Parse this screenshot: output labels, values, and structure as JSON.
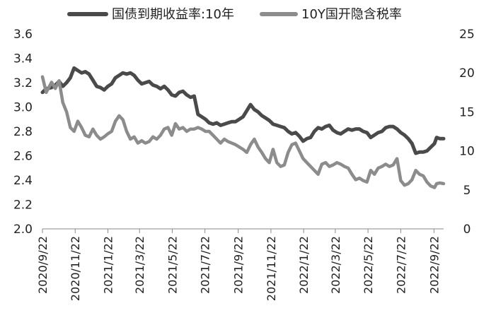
{
  "chart_data": {
    "type": "line",
    "title": "",
    "legend_position": "top",
    "grid": false,
    "x_tick_labels": [
      "2020/9/22",
      "2020/11/22",
      "2021/1/22",
      "2021/3/22",
      "2021/5/22",
      "2021/7/22",
      "2021/9/22",
      "2021/11/22",
      "2022/1/22",
      "2022/3/22",
      "2022/5/22",
      "2022/7/22",
      "2022/9/22"
    ],
    "x_range": [
      "2020-09-22",
      "2022-10-10"
    ],
    "y_left": {
      "ylim": [
        2.0,
        3.6
      ],
      "ticks": [
        "2.0",
        "2.2",
        "2.4",
        "2.6",
        "2.8",
        "3.0",
        "3.2",
        "3.4",
        "3.6"
      ]
    },
    "y_right": {
      "ylim": [
        0,
        25
      ],
      "ticks": [
        "0",
        "5",
        "10",
        "15",
        "20",
        "25"
      ]
    },
    "series": [
      {
        "name": "国债到期收益率:10年",
        "axis": "left",
        "color": "#4a4a4a",
        "points": [
          [
            "2020-09-22",
            3.12
          ],
          [
            "2020-09-29",
            3.15
          ],
          [
            "2020-10-09",
            3.16
          ],
          [
            "2020-10-16",
            3.18
          ],
          [
            "2020-10-23",
            3.21
          ],
          [
            "2020-10-30",
            3.17
          ],
          [
            "2020-11-06",
            3.2
          ],
          [
            "2020-11-13",
            3.24
          ],
          [
            "2020-11-20",
            3.32
          ],
          [
            "2020-11-27",
            3.3
          ],
          [
            "2020-12-04",
            3.28
          ],
          [
            "2020-12-11",
            3.29
          ],
          [
            "2020-12-18",
            3.27
          ],
          [
            "2020-12-25",
            3.22
          ],
          [
            "2021-01-01",
            3.17
          ],
          [
            "2021-01-08",
            3.16
          ],
          [
            "2021-01-15",
            3.14
          ],
          [
            "2021-01-22",
            3.17
          ],
          [
            "2021-01-29",
            3.19
          ],
          [
            "2021-02-05",
            3.24
          ],
          [
            "2021-02-12",
            3.26
          ],
          [
            "2021-02-19",
            3.28
          ],
          [
            "2021-02-26",
            3.27
          ],
          [
            "2021-03-05",
            3.28
          ],
          [
            "2021-03-12",
            3.26
          ],
          [
            "2021-03-19",
            3.22
          ],
          [
            "2021-03-26",
            3.19
          ],
          [
            "2021-04-02",
            3.2
          ],
          [
            "2021-04-09",
            3.21
          ],
          [
            "2021-04-16",
            3.18
          ],
          [
            "2021-04-23",
            3.17
          ],
          [
            "2021-04-30",
            3.15
          ],
          [
            "2021-05-07",
            3.17
          ],
          [
            "2021-05-14",
            3.14
          ],
          [
            "2021-05-21",
            3.1
          ],
          [
            "2021-05-28",
            3.09
          ],
          [
            "2021-06-04",
            3.12
          ],
          [
            "2021-06-11",
            3.13
          ],
          [
            "2021-06-18",
            3.1
          ],
          [
            "2021-06-25",
            3.08
          ],
          [
            "2021-07-02",
            3.09
          ],
          [
            "2021-07-09",
            2.94
          ],
          [
            "2021-07-16",
            2.92
          ],
          [
            "2021-07-23",
            2.9
          ],
          [
            "2021-07-30",
            2.87
          ],
          [
            "2021-08-06",
            2.86
          ],
          [
            "2021-08-13",
            2.87
          ],
          [
            "2021-08-20",
            2.85
          ],
          [
            "2021-08-27",
            2.86
          ],
          [
            "2021-09-03",
            2.87
          ],
          [
            "2021-09-10",
            2.88
          ],
          [
            "2021-09-17",
            2.88
          ],
          [
            "2021-09-24",
            2.9
          ],
          [
            "2021-10-01",
            2.92
          ],
          [
            "2021-10-08",
            2.97
          ],
          [
            "2021-10-15",
            3.02
          ],
          [
            "2021-10-22",
            2.98
          ],
          [
            "2021-10-29",
            2.96
          ],
          [
            "2021-11-05",
            2.93
          ],
          [
            "2021-11-12",
            2.91
          ],
          [
            "2021-11-19",
            2.89
          ],
          [
            "2021-11-26",
            2.86
          ],
          [
            "2021-12-03",
            2.85
          ],
          [
            "2021-12-10",
            2.84
          ],
          [
            "2021-12-17",
            2.83
          ],
          [
            "2021-12-24",
            2.8
          ],
          [
            "2021-12-31",
            2.78
          ],
          [
            "2022-01-07",
            2.79
          ],
          [
            "2022-01-14",
            2.76
          ],
          [
            "2022-01-21",
            2.72
          ],
          [
            "2022-01-28",
            2.74
          ],
          [
            "2022-02-04",
            2.75
          ],
          [
            "2022-02-11",
            2.8
          ],
          [
            "2022-02-18",
            2.83
          ],
          [
            "2022-02-25",
            2.82
          ],
          [
            "2022-03-04",
            2.84
          ],
          [
            "2022-03-11",
            2.85
          ],
          [
            "2022-03-18",
            2.81
          ],
          [
            "2022-03-25",
            2.79
          ],
          [
            "2022-04-01",
            2.78
          ],
          [
            "2022-04-08",
            2.8
          ],
          [
            "2022-04-15",
            2.82
          ],
          [
            "2022-04-22",
            2.81
          ],
          [
            "2022-04-29",
            2.82
          ],
          [
            "2022-05-06",
            2.82
          ],
          [
            "2022-05-13",
            2.8
          ],
          [
            "2022-05-20",
            2.79
          ],
          [
            "2022-05-27",
            2.75
          ],
          [
            "2022-06-03",
            2.77
          ],
          [
            "2022-06-10",
            2.79
          ],
          [
            "2022-06-17",
            2.8
          ],
          [
            "2022-06-24",
            2.83
          ],
          [
            "2022-07-01",
            2.84
          ],
          [
            "2022-07-08",
            2.84
          ],
          [
            "2022-07-15",
            2.82
          ],
          [
            "2022-07-22",
            2.79
          ],
          [
            "2022-07-29",
            2.77
          ],
          [
            "2022-08-05",
            2.74
          ],
          [
            "2022-08-12",
            2.7
          ],
          [
            "2022-08-19",
            2.62
          ],
          [
            "2022-08-26",
            2.63
          ],
          [
            "2022-09-02",
            2.63
          ],
          [
            "2022-09-09",
            2.64
          ],
          [
            "2022-09-16",
            2.67
          ],
          [
            "2022-09-23",
            2.7
          ],
          [
            "2022-09-27",
            2.75
          ],
          [
            "2022-10-03",
            2.74
          ],
          [
            "2022-10-10",
            2.74
          ]
        ]
      },
      {
        "name": "10Y国开隐含税率",
        "axis": "right",
        "color": "#8c8c8c",
        "points": [
          [
            "2020-09-22",
            19.5
          ],
          [
            "2020-09-29",
            17.5
          ],
          [
            "2020-10-09",
            18.8
          ],
          [
            "2020-10-16",
            18.0
          ],
          [
            "2020-10-23",
            19.0
          ],
          [
            "2020-10-30",
            16.2
          ],
          [
            "2020-11-06",
            15.0
          ],
          [
            "2020-11-13",
            13.0
          ],
          [
            "2020-11-20",
            12.5
          ],
          [
            "2020-11-27",
            13.8
          ],
          [
            "2020-12-04",
            13.0
          ],
          [
            "2020-12-11",
            12.0
          ],
          [
            "2020-12-18",
            11.8
          ],
          [
            "2020-12-25",
            12.8
          ],
          [
            "2021-01-01",
            12.0
          ],
          [
            "2021-01-08",
            11.5
          ],
          [
            "2021-01-15",
            11.8
          ],
          [
            "2021-01-22",
            12.2
          ],
          [
            "2021-01-29",
            12.5
          ],
          [
            "2021-02-05",
            13.8
          ],
          [
            "2021-02-12",
            14.5
          ],
          [
            "2021-02-19",
            14.0
          ],
          [
            "2021-02-26",
            12.5
          ],
          [
            "2021-03-05",
            11.5
          ],
          [
            "2021-03-12",
            11.8
          ],
          [
            "2021-03-19",
            11.0
          ],
          [
            "2021-03-26",
            11.3
          ],
          [
            "2021-04-02",
            11.0
          ],
          [
            "2021-04-09",
            11.2
          ],
          [
            "2021-04-16",
            11.8
          ],
          [
            "2021-04-23",
            11.5
          ],
          [
            "2021-04-30",
            12.0
          ],
          [
            "2021-05-07",
            12.8
          ],
          [
            "2021-05-14",
            13.0
          ],
          [
            "2021-05-21",
            12.0
          ],
          [
            "2021-05-28",
            13.5
          ],
          [
            "2021-06-04",
            12.8
          ],
          [
            "2021-06-11",
            13.0
          ],
          [
            "2021-06-18",
            12.5
          ],
          [
            "2021-06-25",
            12.8
          ],
          [
            "2021-07-02",
            12.8
          ],
          [
            "2021-07-09",
            13.0
          ],
          [
            "2021-07-16",
            12.8
          ],
          [
            "2021-07-23",
            12.5
          ],
          [
            "2021-07-30",
            12.5
          ],
          [
            "2021-08-06",
            12.0
          ],
          [
            "2021-08-13",
            11.5
          ],
          [
            "2021-08-20",
            11.0
          ],
          [
            "2021-08-27",
            11.5
          ],
          [
            "2021-09-03",
            11.2
          ],
          [
            "2021-09-10",
            11.0
          ],
          [
            "2021-09-17",
            10.8
          ],
          [
            "2021-09-24",
            10.5
          ],
          [
            "2021-10-01",
            10.2
          ],
          [
            "2021-10-08",
            9.8
          ],
          [
            "2021-10-15",
            10.8
          ],
          [
            "2021-10-22",
            11.5
          ],
          [
            "2021-10-29",
            10.5
          ],
          [
            "2021-11-05",
            9.8
          ],
          [
            "2021-11-12",
            9.0
          ],
          [
            "2021-11-19",
            8.5
          ],
          [
            "2021-11-26",
            10.2
          ],
          [
            "2021-12-03",
            8.5
          ],
          [
            "2021-12-10",
            8.0
          ],
          [
            "2021-12-17",
            8.2
          ],
          [
            "2021-12-24",
            9.8
          ],
          [
            "2021-12-31",
            10.8
          ],
          [
            "2022-01-07",
            11.0
          ],
          [
            "2022-01-14",
            10.0
          ],
          [
            "2022-01-21",
            9.0
          ],
          [
            "2022-01-28",
            8.5
          ],
          [
            "2022-02-04",
            8.0
          ],
          [
            "2022-02-11",
            7.5
          ],
          [
            "2022-02-18",
            7.0
          ],
          [
            "2022-02-25",
            8.3
          ],
          [
            "2022-03-04",
            8.5
          ],
          [
            "2022-03-11",
            8.0
          ],
          [
            "2022-03-18",
            8.2
          ],
          [
            "2022-03-25",
            8.5
          ],
          [
            "2022-04-01",
            8.3
          ],
          [
            "2022-04-08",
            8.0
          ],
          [
            "2022-04-15",
            7.8
          ],
          [
            "2022-04-22",
            7.0
          ],
          [
            "2022-04-29",
            6.3
          ],
          [
            "2022-05-06",
            6.5
          ],
          [
            "2022-05-13",
            6.2
          ],
          [
            "2022-05-20",
            6.0
          ],
          [
            "2022-05-27",
            7.5
          ],
          [
            "2022-06-03",
            7.0
          ],
          [
            "2022-06-10",
            7.8
          ],
          [
            "2022-06-17",
            8.0
          ],
          [
            "2022-06-24",
            8.3
          ],
          [
            "2022-07-01",
            8.0
          ],
          [
            "2022-07-08",
            8.2
          ],
          [
            "2022-07-15",
            9.0
          ],
          [
            "2022-07-22",
            6.2
          ],
          [
            "2022-07-29",
            5.6
          ],
          [
            "2022-08-05",
            5.8
          ],
          [
            "2022-08-12",
            6.3
          ],
          [
            "2022-08-19",
            7.5
          ],
          [
            "2022-08-26",
            7.0
          ],
          [
            "2022-09-02",
            6.8
          ],
          [
            "2022-09-09",
            6.0
          ],
          [
            "2022-09-16",
            5.5
          ],
          [
            "2022-09-23",
            5.3
          ],
          [
            "2022-09-27",
            5.8
          ],
          [
            "2022-10-03",
            5.9
          ],
          [
            "2022-10-10",
            5.8
          ]
        ]
      }
    ]
  }
}
